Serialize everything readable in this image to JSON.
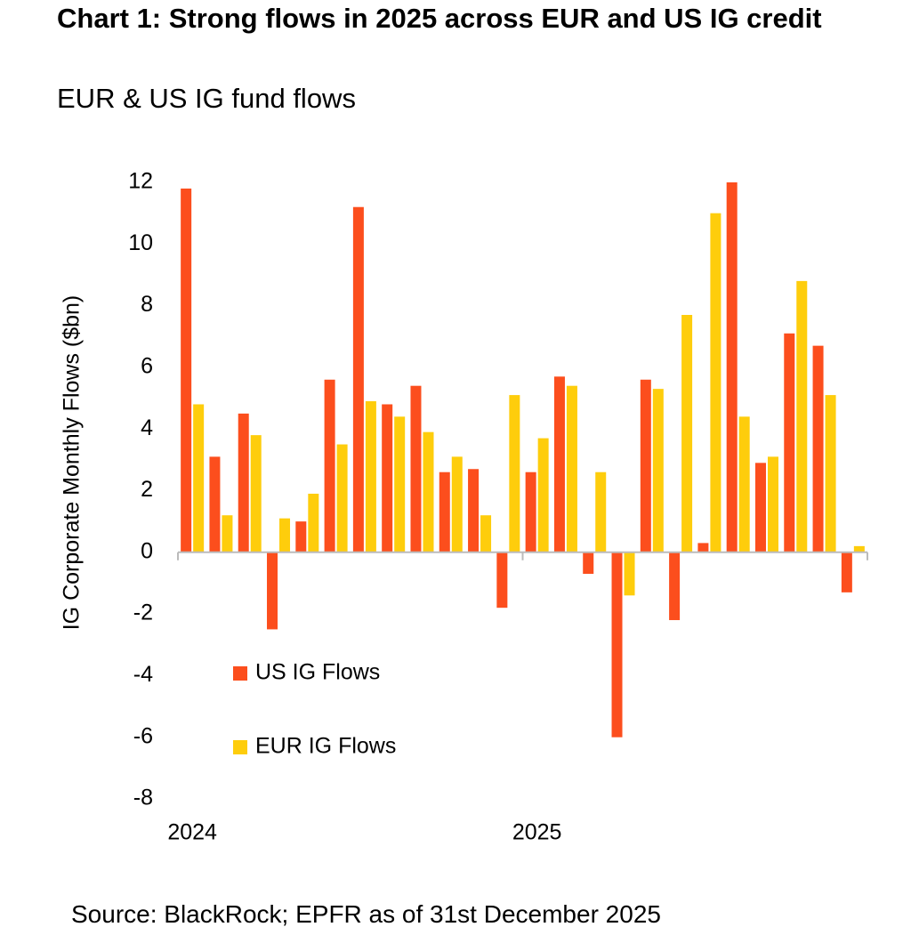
{
  "chart_data": {
    "type": "bar",
    "title": "Chart 1: Strong flows in 2025 across EUR and US IG credit",
    "subtitle": "EUR & US IG fund flows",
    "y_label": "IG Corporate Monthly Flows ($bn)",
    "source": "Source: BlackRock; EPFR as of 31st December 2025",
    "categories": [
      "2024",
      null,
      null,
      null,
      null,
      null,
      null,
      null,
      null,
      null,
      null,
      null,
      "2025",
      null,
      null,
      null,
      null,
      null,
      null,
      null,
      null,
      null,
      null,
      null
    ],
    "series": [
      {
        "name": "US IG Flows",
        "color": "#fc4e1d",
        "values": [
          11.8,
          3.1,
          4.5,
          -2.5,
          1.0,
          5.6,
          11.2,
          4.8,
          5.4,
          2.6,
          2.7,
          -1.8,
          2.6,
          5.7,
          -0.7,
          -6.0,
          5.6,
          -2.2,
          0.3,
          12.0,
          2.9,
          7.1,
          6.7,
          -1.3
        ]
      },
      {
        "name": "EUR IG Flows",
        "color": "#fecd0c",
        "values": [
          4.8,
          1.2,
          3.8,
          1.1,
          1.9,
          3.5,
          4.9,
          4.4,
          3.9,
          3.1,
          1.2,
          5.1,
          3.7,
          5.4,
          2.6,
          -1.4,
          5.3,
          7.7,
          11.0,
          4.4,
          3.1,
          8.8,
          5.1,
          0.2
        ]
      }
    ],
    "ylim": [
      -8,
      12
    ],
    "yticks": [
      -8,
      -6,
      -4,
      -2,
      0,
      2,
      4,
      6,
      8,
      10,
      12
    ],
    "grid": false,
    "legend": "lower-left"
  }
}
